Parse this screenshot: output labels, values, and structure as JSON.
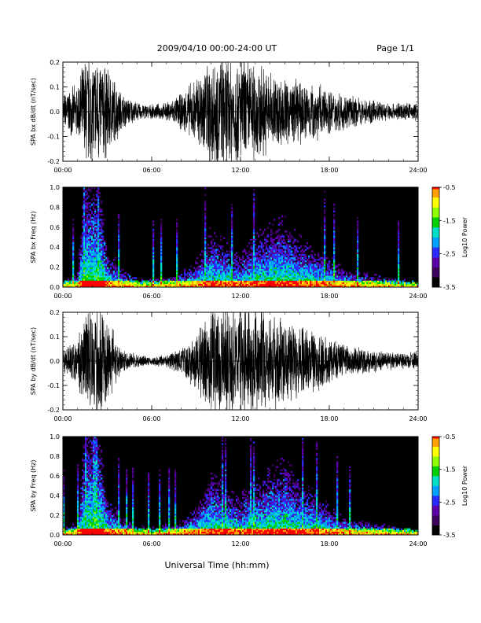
{
  "header": {
    "title": "2009/04/10   00:00-24:00 UT",
    "page": "Page 1/1"
  },
  "x_axis": {
    "label": "Universal Time (hh:mm)",
    "ticks": [
      "00:00",
      "06:00",
      "12:00",
      "18:00",
      "24:00"
    ]
  },
  "colorbar": {
    "label": "Log10 Power",
    "ticks": [
      "-0.5",
      "-1.5",
      "-2.5",
      "-3.5"
    ],
    "range": [
      -3.5,
      -0.5
    ],
    "palette": [
      "#000000",
      "#3a005c",
      "#5a00a8",
      "#2a2cff",
      "#00a0ff",
      "#00e0c8",
      "#00d000",
      "#90ff00",
      "#ffff00",
      "#ffa000",
      "#ff0000"
    ]
  },
  "chart_data": [
    {
      "type": "line",
      "ylabel": "SPA bx dB/dt (nT/sec)",
      "xlim": [
        0,
        24
      ],
      "ylim": [
        -0.2,
        0.2
      ],
      "y_ticks": [
        "0.2",
        "0.1",
        "0.0",
        "-0.1",
        "-0.2"
      ],
      "envelope": {
        "hours": [
          0,
          1,
          1.5,
          2,
          2.5,
          3,
          3.5,
          4,
          5,
          6,
          7,
          8,
          9,
          10,
          11,
          12,
          13,
          14,
          15,
          16,
          17,
          18,
          19,
          20,
          21,
          22,
          23,
          24
        ],
        "amplitude": [
          0.08,
          0.12,
          0.25,
          0.25,
          0.25,
          0.2,
          0.15,
          0.08,
          0.04,
          0.03,
          0.04,
          0.08,
          0.15,
          0.25,
          0.25,
          0.25,
          0.22,
          0.18,
          0.15,
          0.14,
          0.13,
          0.1,
          0.08,
          0.06,
          0.05,
          0.04,
          0.04,
          0.04
        ]
      }
    },
    {
      "type": "heatmap",
      "ylabel": "SPA bx Freq (Hz)",
      "xlim": [
        0,
        24
      ],
      "ylim": [
        0,
        1.0
      ],
      "y_ticks": [
        "1.0",
        "0.8",
        "0.6",
        "0.4",
        "0.2",
        "0.0"
      ],
      "z_range": [
        -3.5,
        -0.5
      ],
      "activity": {
        "hours": [
          0,
          1,
          1.5,
          2,
          2.5,
          3,
          4,
          5,
          6,
          7,
          8,
          9,
          10,
          11,
          12,
          13,
          14,
          15,
          16,
          17,
          18,
          19,
          20,
          21,
          22,
          23,
          24
        ],
        "height": [
          0.05,
          0.1,
          0.9,
          0.9,
          0.8,
          0.3,
          0.15,
          0.08,
          0.06,
          0.08,
          0.12,
          0.2,
          0.45,
          0.35,
          0.25,
          0.4,
          0.5,
          0.55,
          0.4,
          0.3,
          0.25,
          0.15,
          0.12,
          0.1,
          0.08,
          0.06,
          0.05
        ]
      }
    },
    {
      "type": "line",
      "ylabel": "SPA by dB/dt (nT/sec)",
      "xlim": [
        0,
        24
      ],
      "ylim": [
        -0.2,
        0.2
      ],
      "y_ticks": [
        "0.2",
        "0.1",
        "0.0",
        "-0.1",
        "-0.2"
      ],
      "envelope": {
        "hours": [
          0,
          1,
          1.5,
          2,
          2.5,
          3,
          3.5,
          4,
          5,
          6,
          7,
          8,
          9,
          10,
          11,
          12,
          13,
          14,
          15,
          16,
          17,
          18,
          19,
          20,
          21,
          22,
          23,
          24
        ],
        "amplitude": [
          0.05,
          0.1,
          0.25,
          0.25,
          0.25,
          0.2,
          0.12,
          0.05,
          0.03,
          0.02,
          0.03,
          0.06,
          0.12,
          0.25,
          0.25,
          0.25,
          0.25,
          0.22,
          0.2,
          0.16,
          0.14,
          0.1,
          0.08,
          0.06,
          0.05,
          0.04,
          0.04,
          0.04
        ]
      }
    },
    {
      "type": "heatmap",
      "ylabel": "SPA by Freq (Hz)",
      "xlim": [
        0,
        24
      ],
      "ylim": [
        0,
        1.0
      ],
      "y_ticks": [
        "1.0",
        "0.8",
        "0.6",
        "0.4",
        "0.2",
        "0.0"
      ],
      "z_range": [
        -3.5,
        -0.5
      ],
      "activity": {
        "hours": [
          0,
          1,
          1.5,
          2,
          2.5,
          3,
          4,
          5,
          6,
          7,
          8,
          9,
          10,
          11,
          12,
          13,
          14,
          15,
          16,
          17,
          18,
          19,
          20,
          21,
          22,
          23,
          24
        ],
        "height": [
          0.05,
          0.1,
          0.9,
          0.9,
          0.8,
          0.3,
          0.15,
          0.08,
          0.06,
          0.08,
          0.12,
          0.22,
          0.5,
          0.4,
          0.3,
          0.45,
          0.55,
          0.6,
          0.45,
          0.35,
          0.25,
          0.15,
          0.12,
          0.1,
          0.08,
          0.06,
          0.05
        ]
      }
    }
  ]
}
